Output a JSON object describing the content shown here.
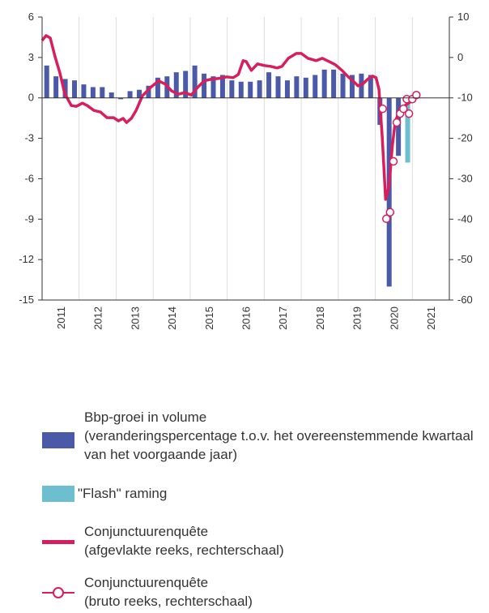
{
  "chart_data": {
    "type": "bar",
    "xlim": [
      2010.5,
      2021.5
    ],
    "xticks": [
      2011,
      2012,
      2013,
      2014,
      2015,
      2016,
      2017,
      2018,
      2019,
      2020,
      2021
    ],
    "ylim": [
      -15,
      6
    ],
    "yticks": [
      -15,
      -12,
      -9,
      -6,
      -3,
      0,
      3,
      6
    ],
    "y2lim": [
      -60,
      10
    ],
    "y2ticks": [
      -60,
      -50,
      -40,
      -30,
      -20,
      -10,
      0,
      10
    ],
    "grid": true,
    "series": [
      {
        "name": "Bbp-groei in volume",
        "note": "(veranderingspercentage t.o.v. het overeenstemmende kwartaal van het voorgaande jaar)",
        "type": "bar",
        "color": "#4a5aa8",
        "x": [
          2010.625,
          2010.875,
          2011.125,
          2011.375,
          2011.625,
          2011.875,
          2012.125,
          2012.375,
          2012.625,
          2012.875,
          2013.125,
          2013.375,
          2013.625,
          2013.875,
          2014.125,
          2014.375,
          2014.625,
          2014.875,
          2015.125,
          2015.375,
          2015.625,
          2015.875,
          2016.125,
          2016.375,
          2016.625,
          2016.875,
          2017.125,
          2017.375,
          2017.625,
          2017.875,
          2018.125,
          2018.375,
          2018.625,
          2018.875,
          2019.125,
          2019.375,
          2019.625,
          2019.875,
          2020.125
        ],
        "values": [
          2.4,
          1.6,
          1.4,
          1.3,
          1.0,
          0.8,
          0.8,
          0.4,
          -0.1,
          0.5,
          0.6,
          0.9,
          1.5,
          1.6,
          1.9,
          2.0,
          2.4,
          1.8,
          1.6,
          1.7,
          1.3,
          1.2,
          1.2,
          1.3,
          1.9,
          1.6,
          1.3,
          1.6,
          1.5,
          1.7,
          2.1,
          2.1,
          1.8,
          1.7,
          1.8,
          1.7,
          -2.0,
          -14.0,
          -4.3
        ]
      },
      {
        "name": "\"Flash\" raming",
        "type": "bar",
        "color": "#6dbfcf",
        "x": [
          2020.375
        ],
        "values": [
          -4.8
        ]
      },
      {
        "name": "Conjunctuurenquête",
        "note": "(afgevlakte reeks, rechterschaal)",
        "type": "line",
        "axis": "y2",
        "color": "#d81e5b",
        "x": [
          2010.5,
          2010.61,
          2010.72,
          2010.85,
          2010.98,
          2011.11,
          2011.29,
          2011.42,
          2011.59,
          2011.72,
          2011.9,
          2012.08,
          2012.25,
          2012.43,
          2012.56,
          2012.69,
          2012.78,
          2012.91,
          2013.04,
          2013.21,
          2013.43,
          2013.65,
          2013.83,
          2014.0,
          2014.18,
          2014.35,
          2014.53,
          2014.7,
          2014.88,
          2015.05,
          2015.27,
          2015.49,
          2015.66,
          2015.8,
          2015.93,
          2016.01,
          2016.15,
          2016.32,
          2016.5,
          2016.67,
          2016.85,
          2016.98,
          2017.15,
          2017.37,
          2017.5,
          2017.68,
          2017.9,
          2018.07,
          2018.25,
          2018.42,
          2018.6,
          2018.77,
          2018.9,
          2019.03,
          2019.16,
          2019.29,
          2019.43,
          2019.52,
          2019.6,
          2019.69,
          2019.78,
          2019.87,
          2019.96,
          2020.04,
          2020.17,
          2020.3,
          2020.43,
          2020.57
        ],
        "values": [
          4.2,
          5.4,
          4.8,
          0.2,
          -3.8,
          -8.9,
          -11.9,
          -12.1,
          -11.3,
          -11.9,
          -13.1,
          -13.5,
          -14.9,
          -14.9,
          -15.7,
          -15.1,
          -16.1,
          -15.1,
          -13.1,
          -9.5,
          -7.4,
          -5.8,
          -6.6,
          -8.3,
          -9.1,
          -8.7,
          -9.3,
          -7.4,
          -5.8,
          -5.4,
          -5.2,
          -4.8,
          -5.0,
          -4.2,
          -0.8,
          -1.0,
          -3.2,
          -1.6,
          -2.0,
          -2.2,
          -2.6,
          -2.2,
          -0.2,
          1.0,
          1.0,
          -0.2,
          -0.8,
          -0.2,
          -1.0,
          -1.8,
          -3.2,
          -4.8,
          -5.8,
          -7.0,
          -6.6,
          -5.4,
          -4.6,
          -5.0,
          -7.9,
          -19.9,
          -35.1,
          -31.9,
          -21.9,
          -15.9,
          -12.7,
          -11.9,
          -11.1,
          -9.5
        ]
      },
      {
        "name": "Conjunctuurenquête",
        "note": "(bruto reeks, rechterschaal)",
        "type": "scatter",
        "axis": "y2",
        "color": "#d81e5b",
        "x": [
          2019.7,
          2019.8,
          2019.9,
          2019.99,
          2020.08,
          2020.17,
          2020.26,
          2020.35,
          2020.41,
          2020.5,
          2020.61
        ],
        "values": [
          -12.7,
          -39.9,
          -38.3,
          -25.7,
          -16.1,
          -13.9,
          -12.7,
          -10.3,
          -13.9,
          -10.3,
          -9.3
        ]
      }
    ]
  }
}
